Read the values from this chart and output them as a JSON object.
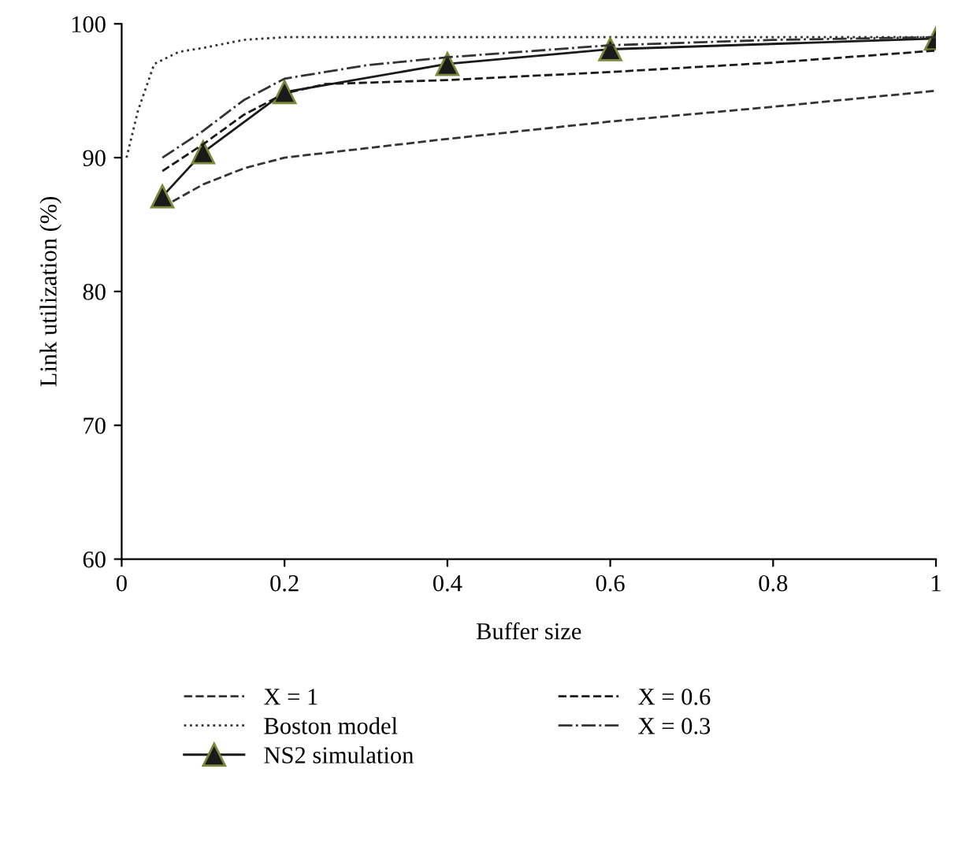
{
  "chart_data": {
    "type": "line",
    "xlabel": "Buffer size",
    "ylabel": "Link utilization (%)",
    "xlim": [
      0,
      1
    ],
    "ylim": [
      60,
      100
    ],
    "xticks": [
      0,
      0.2,
      0.4,
      0.6,
      0.8,
      1
    ],
    "yticks": [
      60,
      70,
      80,
      90,
      100
    ],
    "grid": false,
    "legend": "bottom",
    "series": [
      {
        "name": "X = 1",
        "color": "#333333",
        "line_style": "dashed",
        "marker": "none",
        "x": [
          0.05,
          0.1,
          0.15,
          0.2,
          0.3,
          0.4,
          0.6,
          0.8,
          1
        ],
        "values": [
          86.3,
          88,
          89.2,
          90,
          90.7,
          91.4,
          92.7,
          93.8,
          95
        ]
      },
      {
        "name": "Boston model",
        "color": "#333333",
        "line_style": "dotted",
        "marker": "none",
        "x": [
          0.006,
          0.02,
          0.04,
          0.07,
          0.1,
          0.15,
          0.2,
          1
        ],
        "values": [
          90,
          93.5,
          97,
          97.9,
          98.2,
          98.8,
          99,
          99
        ]
      },
      {
        "name": "NS2 simulation",
        "color": "#1a1a1a",
        "line_style": "solid",
        "marker": "triangle",
        "x": [
          0.05,
          0.1,
          0.2,
          0.4,
          0.6,
          1
        ],
        "values": [
          87.1,
          90.4,
          94.9,
          97,
          98.1,
          98.9
        ]
      },
      {
        "name": "X = 0.6",
        "color": "#1a1a1a",
        "line_style": "dashed",
        "marker": "none",
        "x": [
          0.05,
          0.1,
          0.15,
          0.2,
          0.25,
          0.4,
          0.6,
          0.8,
          1
        ],
        "values": [
          89,
          91,
          93.2,
          94.8,
          95.5,
          95.8,
          96.4,
          97.1,
          98
        ]
      },
      {
        "name": "X = 0.3",
        "color": "#333333",
        "line_style": "dashdot",
        "marker": "none",
        "x": [
          0.05,
          0.1,
          0.15,
          0.2,
          0.3,
          0.4,
          0.6,
          0.8,
          1
        ],
        "values": [
          90,
          92,
          94.3,
          95.9,
          96.9,
          97.5,
          98.4,
          98.8,
          99
        ]
      }
    ]
  }
}
